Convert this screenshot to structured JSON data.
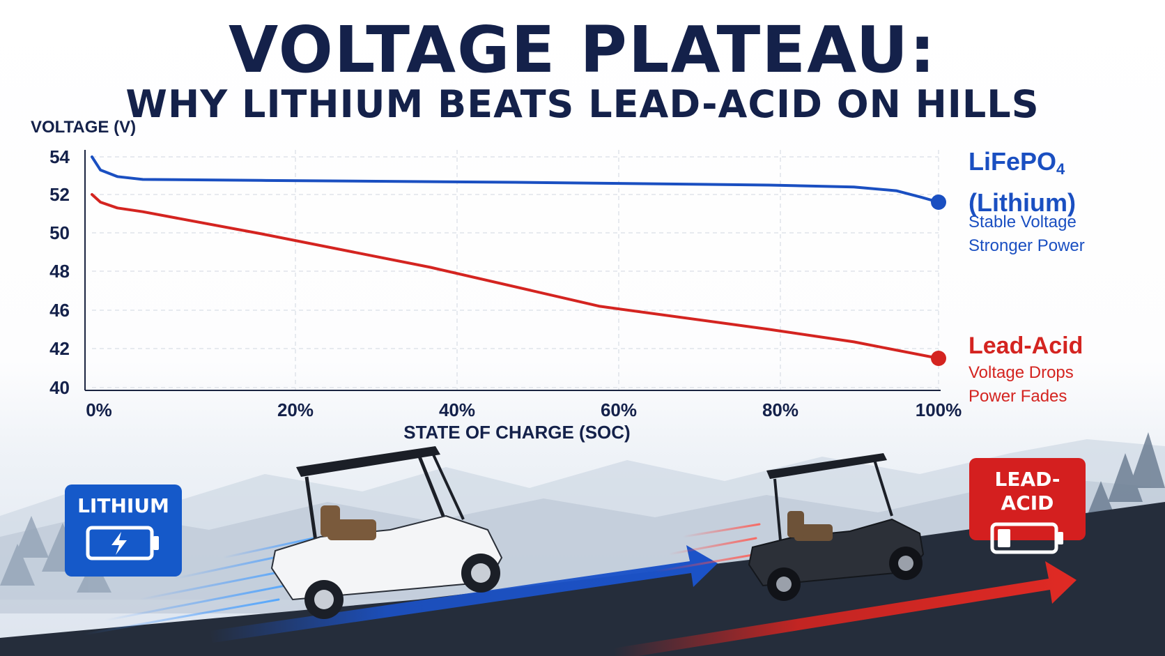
{
  "title": "VOLTAGE PLATEAU:",
  "subtitle": "WHY LITHIUM BEATS LEAD-ACID ON HILLS",
  "labels": {
    "lithium_title": "LiFePO",
    "lithium_sub": "4",
    "lithium_title2": "(Lithium)",
    "lithium_line1": "Stable Voltage",
    "lithium_line2": "Stronger Power",
    "lead_title": "Lead-Acid",
    "lead_line1": "Voltage Drops",
    "lead_line2": "Power Fades"
  },
  "badges": {
    "lithium": "LITHIUM",
    "lead": "LEAD-ACID"
  },
  "colors": {
    "lithium": "#1a4fc1",
    "lead": "#d42420",
    "title": "#14214a"
  },
  "chart_data": {
    "type": "line",
    "xlabel": "STATE OF CHARGE (SOC)",
    "ylabel": "VOLTAGE (V)",
    "x_ticks": [
      "0%",
      "20%",
      "40%",
      "60%",
      "80%",
      "100%"
    ],
    "y_ticks": [
      "54",
      "52",
      "50",
      "48",
      "46",
      "42",
      "40"
    ],
    "grid": true,
    "series": [
      {
        "name": "LiFePO4 (Lithium)",
        "color": "#1a4fc1",
        "points": [
          [
            0,
            54.0
          ],
          [
            1,
            53.3
          ],
          [
            3,
            52.95
          ],
          [
            6,
            52.8
          ],
          [
            20,
            52.75
          ],
          [
            50,
            52.65
          ],
          [
            80,
            52.5
          ],
          [
            90,
            52.4
          ],
          [
            95,
            52.2
          ],
          [
            98,
            51.85
          ],
          [
            100,
            51.6
          ]
        ]
      },
      {
        "name": "Lead-Acid",
        "color": "#d42420",
        "points": [
          [
            0,
            52.0
          ],
          [
            1,
            51.6
          ],
          [
            3,
            51.3
          ],
          [
            6,
            51.1
          ],
          [
            20,
            49.95
          ],
          [
            40,
            48.2
          ],
          [
            60,
            46.2
          ],
          [
            80,
            44.0
          ],
          [
            90,
            42.7
          ],
          [
            100,
            41.5
          ]
        ]
      }
    ]
  }
}
